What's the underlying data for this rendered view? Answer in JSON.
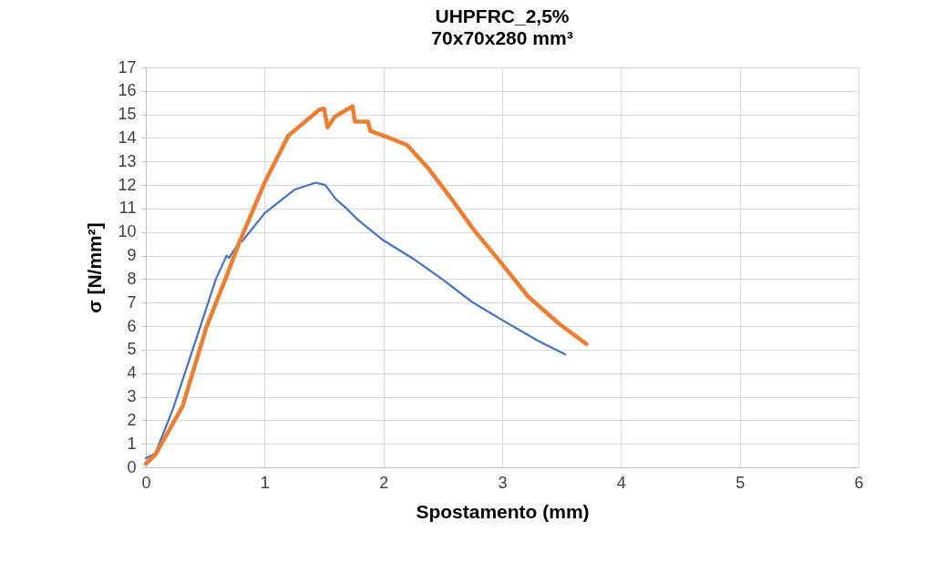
{
  "chart_data": {
    "type": "line",
    "title": "UHPFRC_2,5%",
    "subtitle": "70x70x280 mm³",
    "xlabel": "Spostamento (mm)",
    "ylabel": "σ [N/mm²]",
    "xlim": [
      0,
      6
    ],
    "xticks": [
      0,
      1,
      2,
      3,
      4,
      5,
      6
    ],
    "ylim": [
      0,
      17
    ],
    "yticks": [
      0,
      1,
      2,
      3,
      4,
      5,
      6,
      7,
      8,
      9,
      10,
      11,
      12,
      13,
      14,
      15,
      16,
      17
    ],
    "grid": true,
    "marker": "none",
    "line_style": "solid",
    "series": [
      {
        "color": "#4472c4",
        "x": [
          0,
          0.08,
          0.23,
          0.44,
          0.59,
          0.68,
          0.7,
          0.79,
          0.81,
          1.0,
          1.25,
          1.43,
          1.51,
          1.6,
          1.69,
          1.79,
          2.0,
          2.25,
          2.51,
          2.74,
          3.02,
          3.3,
          3.53
        ],
        "values": [
          0.39,
          0.58,
          2.5,
          5.7,
          8.0,
          9.0,
          8.9,
          9.6,
          9.6,
          10.8,
          11.8,
          12.1,
          12.0,
          11.4,
          11.0,
          10.5,
          9.65,
          8.87,
          7.94,
          7.05,
          6.2,
          5.38,
          4.8
        ]
      },
      {
        "color": "#ed7d31",
        "x": [
          0,
          0.08,
          0.31,
          0.51,
          0.67,
          0.79,
          1.0,
          1.2,
          1.46,
          1.5,
          1.53,
          1.59,
          1.74,
          1.76,
          1.87,
          1.89,
          2.05,
          2.2,
          2.38,
          2.56,
          2.76,
          2.99,
          3.22,
          3.48,
          3.71
        ],
        "values": [
          0.15,
          0.54,
          2.6,
          5.96,
          8.0,
          9.6,
          12.1,
          14.1,
          15.2,
          15.25,
          14.45,
          14.9,
          15.35,
          14.7,
          14.7,
          14.3,
          14.0,
          13.7,
          12.7,
          11.5,
          10.1,
          8.7,
          7.25,
          6.1,
          5.24
        ]
      }
    ]
  }
}
